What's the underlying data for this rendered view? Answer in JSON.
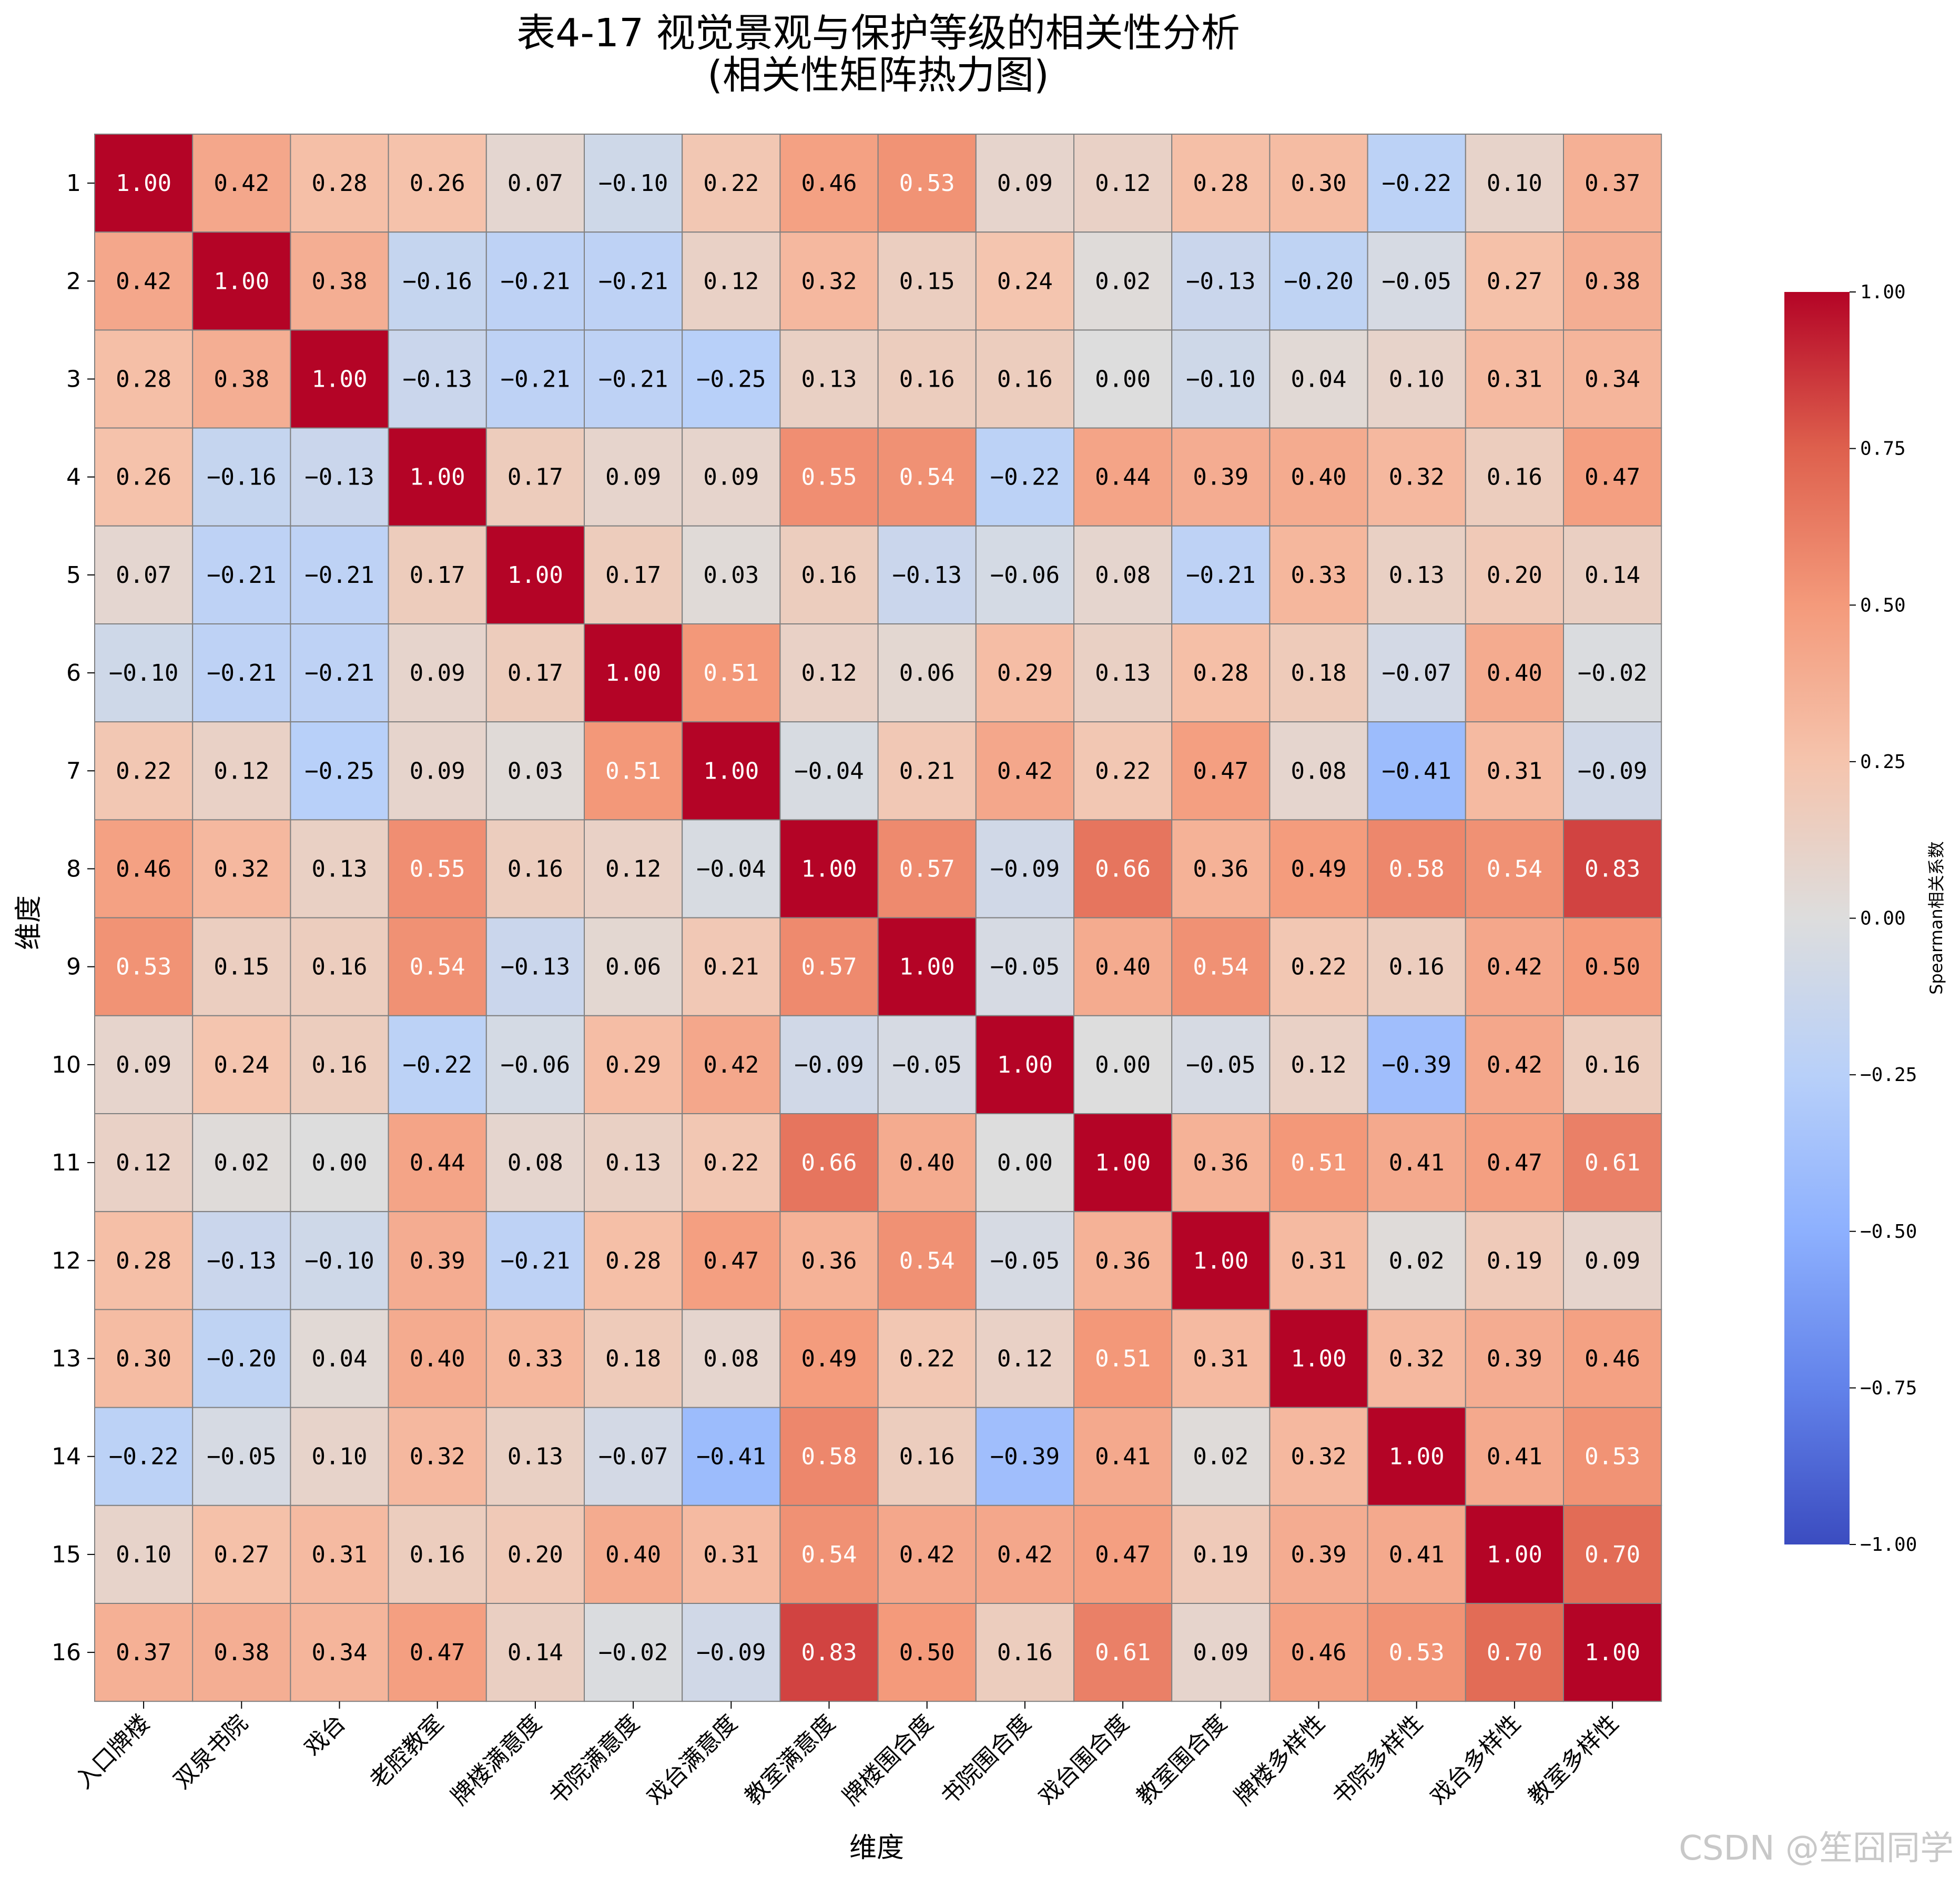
{
  "chart_data": {
    "type": "heatmap",
    "title": "表4-17 视觉景观与保护等级的相关性分析",
    "subtitle": "(相关性矩阵热力图)",
    "xlabel": "维度",
    "ylabel": "维度",
    "row_labels": [
      "1",
      "2",
      "3",
      "4",
      "5",
      "6",
      "7",
      "8",
      "9",
      "10",
      "11",
      "12",
      "13",
      "14",
      "15",
      "16"
    ],
    "col_labels": [
      "入口牌楼",
      "双泉书院",
      "戏台",
      "老腔教室",
      "牌楼满意度",
      "书院满意度",
      "戏台满意度",
      "教室满意度",
      "牌楼围合度",
      "书院围合度",
      "戏台围合度",
      "教室围合度",
      "牌楼多样性",
      "书院多样性",
      "戏台多样性",
      "教室多样性"
    ],
    "values": [
      [
        1.0,
        0.42,
        0.28,
        0.26,
        0.07,
        -0.1,
        0.22,
        0.46,
        0.53,
        0.09,
        0.12,
        0.28,
        0.3,
        -0.22,
        0.1,
        0.37
      ],
      [
        0.42,
        1.0,
        0.38,
        -0.16,
        -0.21,
        -0.21,
        0.12,
        0.32,
        0.15,
        0.24,
        0.02,
        -0.13,
        -0.2,
        -0.05,
        0.27,
        0.38
      ],
      [
        0.28,
        0.38,
        1.0,
        -0.13,
        -0.21,
        -0.21,
        -0.25,
        0.13,
        0.16,
        0.16,
        0.0,
        -0.1,
        0.04,
        0.1,
        0.31,
        0.34
      ],
      [
        0.26,
        -0.16,
        -0.13,
        1.0,
        0.17,
        0.09,
        0.09,
        0.55,
        0.54,
        -0.22,
        0.44,
        0.39,
        0.4,
        0.32,
        0.16,
        0.47
      ],
      [
        0.07,
        -0.21,
        -0.21,
        0.17,
        1.0,
        0.17,
        0.03,
        0.16,
        -0.13,
        -0.06,
        0.08,
        -0.21,
        0.33,
        0.13,
        0.2,
        0.14
      ],
      [
        -0.1,
        -0.21,
        -0.21,
        0.09,
        0.17,
        1.0,
        0.51,
        0.12,
        0.06,
        0.29,
        0.13,
        0.28,
        0.18,
        -0.07,
        0.4,
        -0.02
      ],
      [
        0.22,
        0.12,
        -0.25,
        0.09,
        0.03,
        0.51,
        1.0,
        -0.04,
        0.21,
        0.42,
        0.22,
        0.47,
        0.08,
        -0.41,
        0.31,
        -0.09
      ],
      [
        0.46,
        0.32,
        0.13,
        0.55,
        0.16,
        0.12,
        -0.04,
        1.0,
        0.57,
        -0.09,
        0.66,
        0.36,
        0.49,
        0.58,
        0.54,
        0.83
      ],
      [
        0.53,
        0.15,
        0.16,
        0.54,
        -0.13,
        0.06,
        0.21,
        0.57,
        1.0,
        -0.05,
        0.4,
        0.54,
        0.22,
        0.16,
        0.42,
        0.5
      ],
      [
        0.09,
        0.24,
        0.16,
        -0.22,
        -0.06,
        0.29,
        0.42,
        -0.09,
        -0.05,
        1.0,
        0.0,
        -0.05,
        0.12,
        -0.39,
        0.42,
        0.16
      ],
      [
        0.12,
        0.02,
        0.0,
        0.44,
        0.08,
        0.13,
        0.22,
        0.66,
        0.4,
        0.0,
        1.0,
        0.36,
        0.51,
        0.41,
        0.47,
        0.61
      ],
      [
        0.28,
        -0.13,
        -0.1,
        0.39,
        -0.21,
        0.28,
        0.47,
        0.36,
        0.54,
        -0.05,
        0.36,
        1.0,
        0.31,
        0.02,
        0.19,
        0.09
      ],
      [
        0.3,
        -0.2,
        0.04,
        0.4,
        0.33,
        0.18,
        0.08,
        0.49,
        0.22,
        0.12,
        0.51,
        0.31,
        1.0,
        0.32,
        0.39,
        0.46
      ],
      [
        -0.22,
        -0.05,
        0.1,
        0.32,
        0.13,
        -0.07,
        -0.41,
        0.58,
        0.16,
        -0.39,
        0.41,
        0.02,
        0.32,
        1.0,
        0.41,
        0.53
      ],
      [
        0.1,
        0.27,
        0.31,
        0.16,
        0.2,
        0.4,
        0.31,
        0.54,
        0.42,
        0.42,
        0.47,
        0.19,
        0.39,
        0.41,
        1.0,
        0.7
      ],
      [
        0.37,
        0.38,
        0.34,
        0.47,
        0.14,
        -0.02,
        -0.09,
        0.83,
        0.5,
        0.16,
        0.61,
        0.09,
        0.46,
        0.53,
        0.7,
        1.0
      ]
    ],
    "value_range": [
      -1.0,
      1.0
    ],
    "colormap": "coolwarm",
    "cell_border_color": "#808080",
    "colorbar": {
      "label": "Spearman相关系数",
      "ticks": [
        1.0,
        0.75,
        0.5,
        0.25,
        0.0,
        -0.25,
        -0.5,
        -0.75,
        -1.0
      ],
      "tick_labels": [
        "1.00",
        "0.75",
        "0.50",
        "0.25",
        "0.00",
        "−0.25",
        "−0.50",
        "−0.75",
        "−1.00"
      ]
    },
    "grid": false,
    "legend": "colorbar-right"
  },
  "watermark": "CSDN @笙囧同学"
}
